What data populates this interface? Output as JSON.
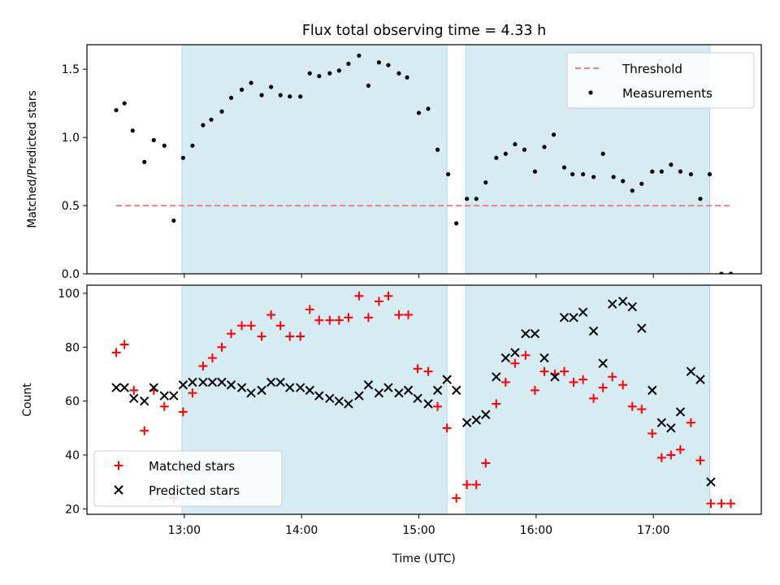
{
  "figure": {
    "title": "Flux total observing time = 4.33 h",
    "xlabel": "Time (UTC)",
    "x_ticks": [
      "13:00",
      "14:00",
      "15:00",
      "16:00",
      "17:00"
    ],
    "x_tick_values": [
      13.0,
      14.0,
      15.0,
      16.0,
      17.0
    ],
    "xlim": [
      12.17,
      17.92
    ],
    "shaded_intervals": [
      [
        12.98,
        15.24
      ],
      [
        15.4,
        17.48
      ]
    ],
    "colors": {
      "shade": "#add8e6",
      "threshold": "#f08080",
      "matched": "#ff0000",
      "predicted": "#000000",
      "measurement": "#000000"
    }
  },
  "chart_data": [
    {
      "type": "scatter",
      "ylabel": "Matched/Predicted stars",
      "ylim": [
        0,
        1.68
      ],
      "y_ticks": [
        "0.0",
        "0.5",
        "1.0",
        "1.5"
      ],
      "y_tick_values": [
        0.0,
        0.5,
        1.0,
        1.5
      ],
      "legend_position": "top-right",
      "threshold": {
        "name": "Threshold",
        "value": 0.5,
        "x_range": [
          12.42,
          17.67
        ]
      },
      "series": [
        {
          "name": "Measurements",
          "points": [
            [
              12.42,
              1.2
            ],
            [
              12.49,
              1.25
            ],
            [
              12.56,
              1.05
            ],
            [
              12.66,
              0.82
            ],
            [
              12.74,
              0.98
            ],
            [
              12.83,
              0.94
            ],
            [
              12.91,
              0.39
            ],
            [
              12.99,
              0.85
            ],
            [
              13.07,
              0.94
            ],
            [
              13.16,
              1.09
            ],
            [
              13.23,
              1.13
            ],
            [
              13.32,
              1.19
            ],
            [
              13.4,
              1.29
            ],
            [
              13.49,
              1.35
            ],
            [
              13.57,
              1.4
            ],
            [
              13.66,
              1.31
            ],
            [
              13.74,
              1.37
            ],
            [
              13.82,
              1.31
            ],
            [
              13.9,
              1.3
            ],
            [
              13.99,
              1.3
            ],
            [
              14.07,
              1.47
            ],
            [
              14.15,
              1.45
            ],
            [
              14.24,
              1.47
            ],
            [
              14.32,
              1.49
            ],
            [
              14.4,
              1.54
            ],
            [
              14.49,
              1.6
            ],
            [
              14.57,
              1.38
            ],
            [
              14.66,
              1.55
            ],
            [
              14.74,
              1.53
            ],
            [
              14.83,
              1.47
            ],
            [
              14.9,
              1.44
            ],
            [
              15.0,
              1.18
            ],
            [
              15.08,
              1.21
            ],
            [
              15.16,
              0.91
            ],
            [
              15.25,
              0.73
            ],
            [
              15.32,
              0.37
            ],
            [
              15.41,
              0.55
            ],
            [
              15.49,
              0.55
            ],
            [
              15.57,
              0.67
            ],
            [
              15.66,
              0.85
            ],
            [
              15.74,
              0.88
            ],
            [
              15.82,
              0.95
            ],
            [
              15.9,
              0.91
            ],
            [
              15.99,
              0.75
            ],
            [
              16.07,
              0.93
            ],
            [
              16.15,
              1.02
            ],
            [
              16.24,
              0.78
            ],
            [
              16.31,
              0.73
            ],
            [
              16.4,
              0.73
            ],
            [
              16.49,
              0.71
            ],
            [
              16.57,
              0.88
            ],
            [
              16.66,
              0.71
            ],
            [
              16.74,
              0.68
            ],
            [
              16.82,
              0.61
            ],
            [
              16.9,
              0.66
            ],
            [
              16.99,
              0.75
            ],
            [
              17.07,
              0.75
            ],
            [
              17.15,
              0.8
            ],
            [
              17.23,
              0.75
            ],
            [
              17.32,
              0.73
            ],
            [
              17.4,
              0.55
            ],
            [
              17.48,
              0.73
            ],
            [
              17.58,
              0.0
            ],
            [
              17.66,
              0.0
            ]
          ]
        }
      ]
    },
    {
      "type": "scatter",
      "ylabel": "Count",
      "ylim": [
        18,
        103
      ],
      "y_ticks": [
        "20",
        "40",
        "60",
        "80",
        "100"
      ],
      "y_tick_values": [
        20,
        40,
        60,
        80,
        100
      ],
      "legend_position": "bottom-left",
      "series": [
        {
          "name": "Matched stars",
          "marker": "plus",
          "points": [
            [
              12.42,
              78
            ],
            [
              12.49,
              81
            ],
            [
              12.57,
              64
            ],
            [
              12.66,
              49
            ],
            [
              12.74,
              64
            ],
            [
              12.83,
              58
            ],
            [
              12.91,
              24
            ],
            [
              12.99,
              56
            ],
            [
              13.07,
              63
            ],
            [
              13.16,
              73
            ],
            [
              13.24,
              76
            ],
            [
              13.32,
              80
            ],
            [
              13.4,
              85
            ],
            [
              13.49,
              88
            ],
            [
              13.57,
              88
            ],
            [
              13.66,
              84
            ],
            [
              13.74,
              92
            ],
            [
              13.82,
              88
            ],
            [
              13.9,
              84
            ],
            [
              13.99,
              84
            ],
            [
              14.07,
              94
            ],
            [
              14.15,
              90
            ],
            [
              14.24,
              90
            ],
            [
              14.32,
              90
            ],
            [
              14.4,
              91
            ],
            [
              14.49,
              99
            ],
            [
              14.57,
              91
            ],
            [
              14.66,
              97
            ],
            [
              14.74,
              99
            ],
            [
              14.83,
              92
            ],
            [
              14.91,
              92
            ],
            [
              14.99,
              72
            ],
            [
              15.08,
              71
            ],
            [
              15.16,
              58
            ],
            [
              15.24,
              50
            ],
            [
              15.32,
              24
            ],
            [
              15.41,
              29
            ],
            [
              15.49,
              29
            ],
            [
              15.57,
              37
            ],
            [
              15.66,
              59
            ],
            [
              15.74,
              67
            ],
            [
              15.82,
              74
            ],
            [
              15.91,
              77
            ],
            [
              15.99,
              64
            ],
            [
              16.07,
              71
            ],
            [
              16.16,
              70
            ],
            [
              16.24,
              71
            ],
            [
              16.32,
              67
            ],
            [
              16.4,
              68
            ],
            [
              16.49,
              61
            ],
            [
              16.57,
              65
            ],
            [
              16.65,
              69
            ],
            [
              16.74,
              66
            ],
            [
              16.82,
              58
            ],
            [
              16.9,
              57
            ],
            [
              16.99,
              48
            ],
            [
              17.07,
              39
            ],
            [
              17.15,
              40
            ],
            [
              17.23,
              42
            ],
            [
              17.32,
              52
            ],
            [
              17.4,
              38
            ],
            [
              17.49,
              22
            ],
            [
              17.58,
              22
            ],
            [
              17.66,
              22
            ]
          ]
        },
        {
          "name": "Predicted stars",
          "marker": "x",
          "points": [
            [
              12.42,
              65
            ],
            [
              12.49,
              65
            ],
            [
              12.57,
              61
            ],
            [
              12.66,
              60
            ],
            [
              12.74,
              65
            ],
            [
              12.83,
              62
            ],
            [
              12.91,
              62
            ],
            [
              12.99,
              66
            ],
            [
              13.07,
              67
            ],
            [
              13.16,
              67
            ],
            [
              13.24,
              67
            ],
            [
              13.32,
              67
            ],
            [
              13.4,
              66
            ],
            [
              13.49,
              65
            ],
            [
              13.57,
              63
            ],
            [
              13.66,
              64
            ],
            [
              13.74,
              67
            ],
            [
              13.82,
              67
            ],
            [
              13.9,
              65
            ],
            [
              13.99,
              65
            ],
            [
              14.07,
              64
            ],
            [
              14.15,
              62
            ],
            [
              14.24,
              61
            ],
            [
              14.32,
              60
            ],
            [
              14.4,
              59
            ],
            [
              14.49,
              62
            ],
            [
              14.57,
              66
            ],
            [
              14.66,
              63
            ],
            [
              14.74,
              65
            ],
            [
              14.83,
              63
            ],
            [
              14.91,
              64
            ],
            [
              14.99,
              61
            ],
            [
              15.08,
              59
            ],
            [
              15.16,
              64
            ],
            [
              15.24,
              68
            ],
            [
              15.32,
              64
            ],
            [
              15.41,
              52
            ],
            [
              15.49,
              53
            ],
            [
              15.57,
              55
            ],
            [
              15.66,
              69
            ],
            [
              15.74,
              76
            ],
            [
              15.82,
              78
            ],
            [
              15.91,
              85
            ],
            [
              15.99,
              85
            ],
            [
              16.07,
              76
            ],
            [
              16.16,
              69
            ],
            [
              16.24,
              91
            ],
            [
              16.32,
              91
            ],
            [
              16.4,
              93
            ],
            [
              16.49,
              86
            ],
            [
              16.57,
              74
            ],
            [
              16.65,
              96
            ],
            [
              16.74,
              97
            ],
            [
              16.82,
              95
            ],
            [
              16.9,
              87
            ],
            [
              16.99,
              64
            ],
            [
              17.07,
              52
            ],
            [
              17.15,
              50
            ],
            [
              17.23,
              56
            ],
            [
              17.32,
              71
            ],
            [
              17.4,
              68
            ],
            [
              17.49,
              30
            ]
          ]
        }
      ]
    }
  ]
}
